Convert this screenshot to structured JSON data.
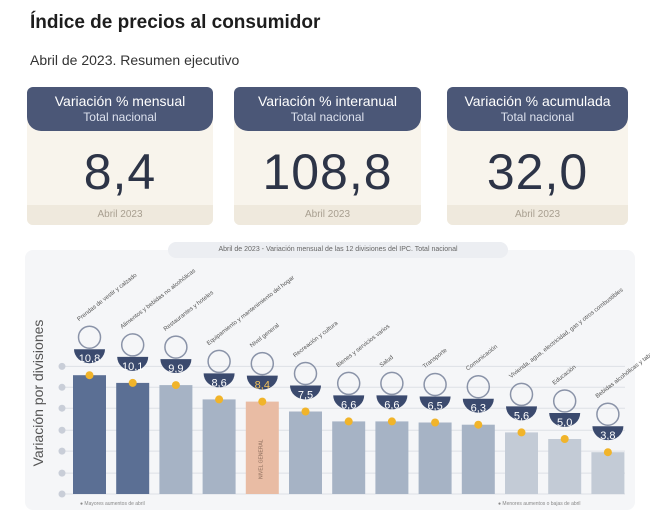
{
  "header": {
    "title": "Índice de precios al consumidor",
    "subtitle": "Abril de 2023. Resumen ejecutivo"
  },
  "cards": [
    {
      "label": "Variación % mensual",
      "sub": "Total nacional",
      "value": "8,4",
      "period": "Abril 2023"
    },
    {
      "label": "Variación % interanual",
      "sub": "Total nacional",
      "value": "108,8",
      "period": "Abril 2023"
    },
    {
      "label": "Variación % acumulada",
      "sub": "Total nacional",
      "value": "32,0",
      "period": "Abril 2023"
    }
  ],
  "chart_data": {
    "type": "bar",
    "title": "Abril de 2023 - Variación mensual de las 12 divisiones del IPC. Total nacional",
    "ylabel": "Variación por divisiones",
    "categories": [
      "Prendas de vestir y calzado",
      "Alimentos y bebidas no alcohólicas",
      "Restaurantes y hoteles",
      "Equipamiento y mantenimiento del hogar",
      "Nivel general",
      "Recreación y cultura",
      "Bienes y servicios varios",
      "Salud",
      "Transporte",
      "Comunicación",
      "Vivienda, agua, electricidad, gas y otros combustibles",
      "Educación",
      "Bebidas alcohólicas y tabaco"
    ],
    "values": [
      10.8,
      10.1,
      9.9,
      8.6,
      8.4,
      7.5,
      6.6,
      6.6,
      6.5,
      6.3,
      5.6,
      5.0,
      3.8
    ],
    "value_labels": [
      "10,8",
      "10,1",
      "9,9",
      "8,6",
      "8,4",
      "7,5",
      "6,6",
      "6,6",
      "6,5",
      "6,3",
      "5,6",
      "5,0",
      "3,8"
    ],
    "bar_label_general": "NIVEL GENERAL",
    "ylim": [
      0,
      12
    ],
    "grid": true,
    "legend": {
      "high": "Mayores aumentos de abril",
      "low": "Menores aumentos o bajas de abril"
    },
    "colors": {
      "high": "#5b6f94",
      "mid": "#a6b3c5",
      "low": "#c3cbd6",
      "general": "#e9bca4",
      "badge": "#3b4a6e",
      "dot": "#f1b42a"
    }
  }
}
